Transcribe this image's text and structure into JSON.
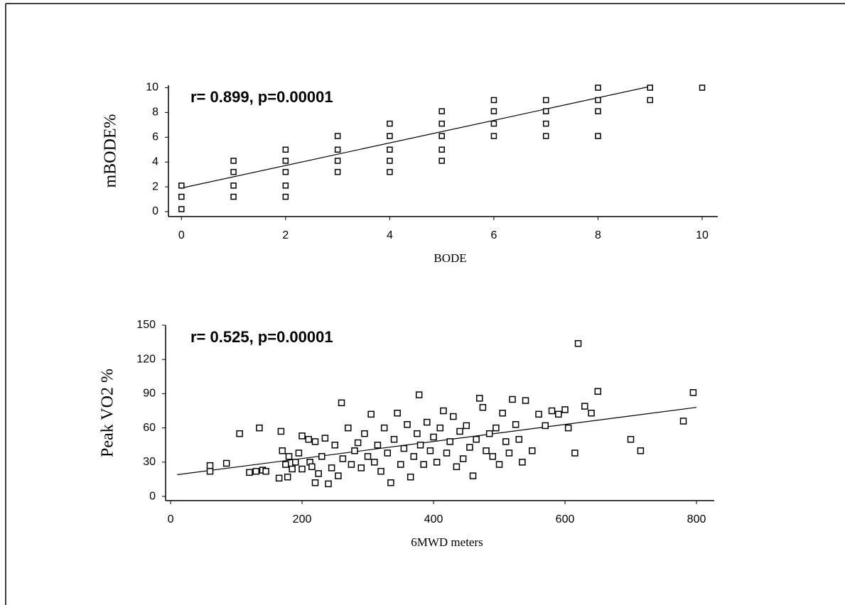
{
  "chart_data": [
    {
      "type": "scatter",
      "annotation": "r= 0.899, p=0.00001",
      "x_label": "BODE",
      "y_label": "mBODE%",
      "color": "#000000",
      "xlim": [
        -0.25,
        10.3
      ],
      "ylim": [
        -0.4,
        10.2
      ],
      "xticks": [
        0,
        2,
        4,
        6,
        8,
        10
      ],
      "yticks": [
        0,
        2,
        4,
        6,
        8,
        10
      ],
      "x": [
        0,
        0,
        0,
        1,
        1,
        1,
        1,
        2,
        2,
        2,
        2,
        2,
        3,
        3,
        3,
        3,
        4,
        4,
        4,
        4,
        4,
        5,
        5,
        5,
        5,
        5,
        6,
        6,
        6,
        6,
        7,
        7,
        7,
        7,
        8,
        8,
        8,
        8,
        9,
        9,
        10
      ],
      "y": [
        0.2,
        1.2,
        2.1,
        1.2,
        2.1,
        3.2,
        4.1,
        1.2,
        2.1,
        3.2,
        4.1,
        5,
        3.2,
        4.1,
        5,
        6.1,
        3.2,
        4.1,
        5,
        6.1,
        7.1,
        4.1,
        5,
        6.1,
        7.1,
        8.1,
        6.1,
        7.1,
        8.1,
        9,
        6.1,
        7.1,
        8.1,
        9,
        6.1,
        8.1,
        9,
        10,
        9,
        10,
        10
      ],
      "fit_line": {
        "x": [
          0,
          9
        ],
        "y": [
          1.9,
          10.1
        ]
      }
    },
    {
      "type": "scatter",
      "annotation": "r= 0.525, p=0.00001",
      "x_label": "6MWD meters",
      "y_label": "Peak VO2 %",
      "color": "#000000",
      "xlim": [
        -7.6,
        827
      ],
      "ylim": [
        -3.7,
        150
      ],
      "xticks": [
        0,
        200,
        400,
        600,
        800
      ],
      "yticks": [
        0,
        30,
        60,
        90,
        120,
        150
      ],
      "x": [
        60,
        60,
        85,
        105,
        120,
        130,
        135,
        140,
        145,
        165,
        168,
        170,
        175,
        178,
        180,
        185,
        190,
        195,
        200,
        200,
        210,
        212,
        215,
        220,
        220,
        225,
        230,
        235,
        240,
        245,
        250,
        255,
        260,
        262,
        270,
        275,
        280,
        285,
        290,
        295,
        300,
        305,
        310,
        315,
        320,
        325,
        330,
        335,
        340,
        345,
        350,
        355,
        360,
        365,
        370,
        375,
        378,
        380,
        385,
        390,
        395,
        400,
        405,
        410,
        415,
        420,
        425,
        430,
        435,
        440,
        445,
        450,
        455,
        460,
        465,
        470,
        475,
        480,
        485,
        490,
        495,
        500,
        505,
        510,
        515,
        520,
        525,
        530,
        535,
        540,
        550,
        560,
        570,
        580,
        590,
        600,
        605,
        615,
        620,
        630,
        640,
        650,
        700,
        715,
        780,
        795
      ],
      "y": [
        22,
        27,
        29,
        55,
        21,
        22,
        60,
        23,
        22,
        16,
        57,
        40,
        28,
        17,
        35,
        24,
        30,
        38,
        24,
        53,
        50,
        30,
        26,
        12,
        48,
        20,
        35,
        51,
        11,
        25,
        45,
        18,
        82,
        33,
        60,
        28,
        40,
        47,
        25,
        55,
        35,
        72,
        30,
        45,
        22,
        60,
        38,
        12,
        50,
        73,
        28,
        42,
        63,
        17,
        35,
        55,
        89,
        45,
        28,
        65,
        40,
        52,
        30,
        60,
        75,
        38,
        48,
        70,
        26,
        57,
        33,
        62,
        43,
        18,
        50,
        86,
        78,
        40,
        55,
        35,
        60,
        28,
        73,
        48,
        38,
        85,
        63,
        50,
        30,
        84,
        40,
        72,
        62,
        75,
        72,
        76,
        60,
        38,
        134,
        79,
        73,
        92,
        50,
        40,
        66,
        91
      ],
      "fit_line": {
        "x": [
          10,
          800
        ],
        "y": [
          19,
          78
        ]
      }
    }
  ]
}
